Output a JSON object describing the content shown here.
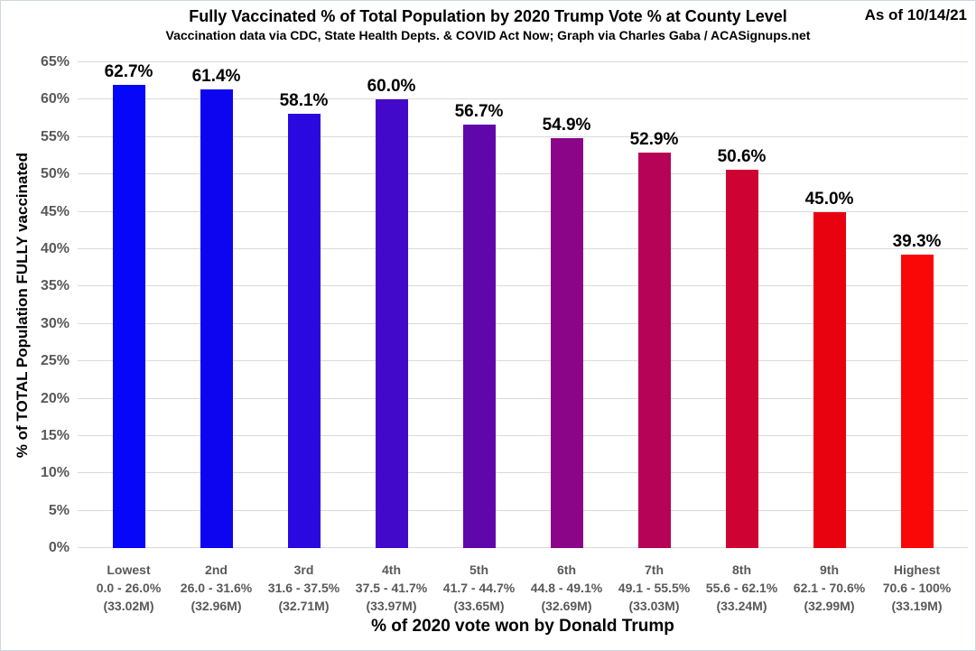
{
  "chart_data": {
    "type": "bar",
    "title": "Fully Vaccinated % of Total Population by 2020 Trump Vote % at County Level",
    "subtitle": "Vaccination data via CDC, State Health Depts. & COVID Act Now; Graph via Charles Gaba / ACASignups.net",
    "as_of": "As of 10/14/21",
    "xlabel": "% of 2020 vote won by Donald Trump",
    "ylabel": "% of TOTAL Population FULLY vaccinated",
    "ylim": [
      0,
      65
    ],
    "ytick_step": 5,
    "ytick_labels": [
      "0%",
      "5%",
      "10%",
      "15%",
      "20%",
      "25%",
      "30%",
      "35%",
      "40%",
      "45%",
      "50%",
      "55%",
      "60%",
      "65%"
    ],
    "grid": true,
    "legend": false,
    "categories": [
      {
        "name": "Lowest",
        "trump_vote_range": "0.0 - 26.0%",
        "population": "(33.02M)"
      },
      {
        "name": "2nd",
        "trump_vote_range": "26.0 - 31.6%",
        "population": "(32.96M)"
      },
      {
        "name": "3rd",
        "trump_vote_range": "31.6 - 37.5%",
        "population": "(32.71M)"
      },
      {
        "name": "4th",
        "trump_vote_range": "37.5 - 41.7%",
        "population": "(33.97M)"
      },
      {
        "name": "5th",
        "trump_vote_range": "41.7 - 44.7%",
        "population": "(33.65M)"
      },
      {
        "name": "6th",
        "trump_vote_range": "44.8 - 49.1%",
        "population": "(32.69M)"
      },
      {
        "name": "7th",
        "trump_vote_range": "49.1 - 55.5%",
        "population": "(33.03M)"
      },
      {
        "name": "8th",
        "trump_vote_range": "55.6 - 62.1%",
        "population": "(33.24M)"
      },
      {
        "name": "9th",
        "trump_vote_range": "62.1 - 70.6%",
        "population": "(32.99M)"
      },
      {
        "name": "Highest",
        "trump_vote_range": "70.6 - 100%",
        "population": "(33.19M)"
      }
    ],
    "values": [
      62.7,
      61.4,
      58.1,
      60.0,
      56.7,
      54.9,
      52.9,
      50.6,
      45.0,
      39.3
    ],
    "value_labels": [
      "62.7%",
      "61.4%",
      "58.1%",
      "60.0%",
      "56.7%",
      "54.9%",
      "52.9%",
      "50.6%",
      "45.0%",
      "39.3%"
    ],
    "bar_colors": [
      "#0606F8",
      "#0E05F0",
      "#2A08E0",
      "#4309CB",
      "#5F07AA",
      "#8B0588",
      "#B70357",
      "#CE0233",
      "#E80210",
      "#FA0707"
    ],
    "colors": {
      "gridline": "#d9d9d9",
      "axis_tick_text": "#595959",
      "text": "#000000",
      "border": "#ccd8e3",
      "background": "#ffffff"
    }
  }
}
